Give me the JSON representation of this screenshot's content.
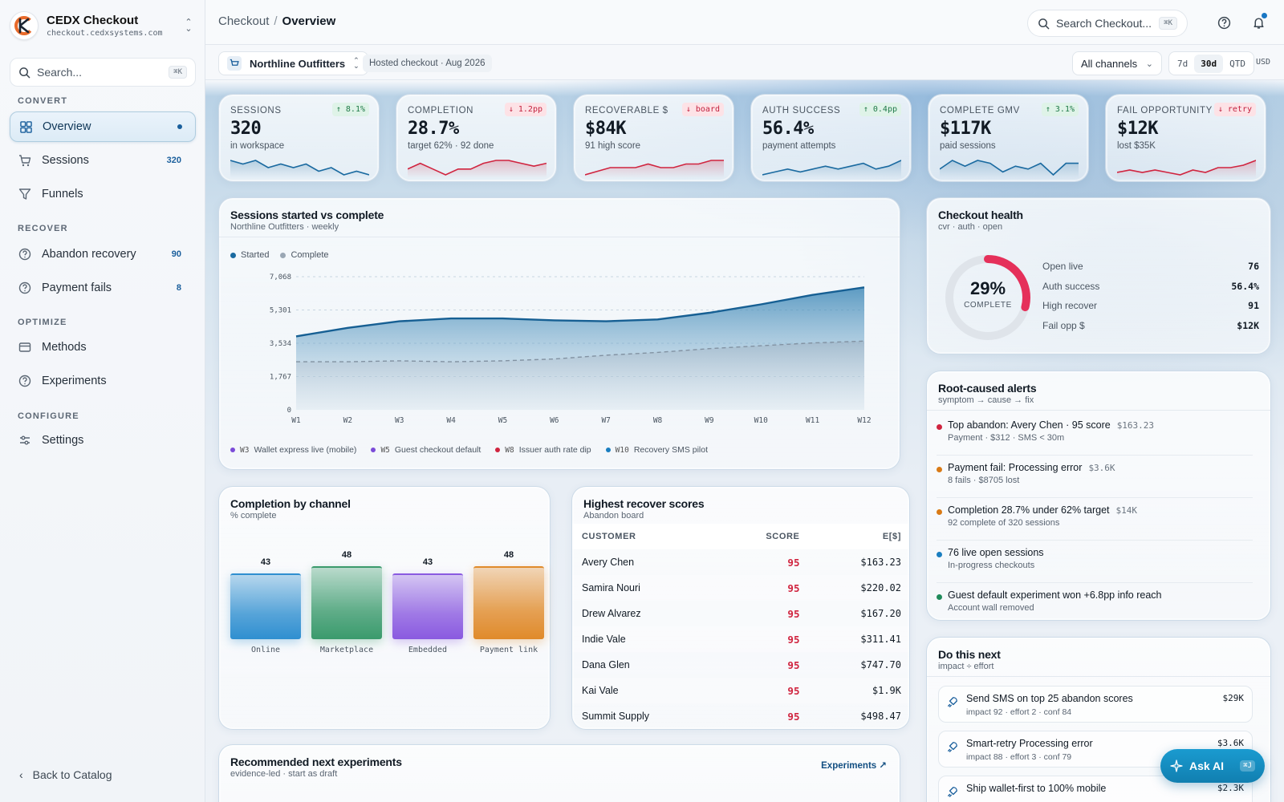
{
  "brand": {
    "name": "CEDX Checkout",
    "domain": "checkout.cedxsystems.com"
  },
  "sidebar": {
    "search_placeholder": "Search...",
    "search_kbd": "⌘K",
    "sections": [
      "CONVERT",
      "RECOVER",
      "OPTIMIZE",
      "CONFIGURE"
    ],
    "items": [
      {
        "label": "Overview",
        "count": ""
      },
      {
        "label": "Sessions",
        "count": "320"
      },
      {
        "label": "Funnels",
        "count": ""
      },
      {
        "label": "Abandon recovery",
        "count": "90"
      },
      {
        "label": "Payment fails",
        "count": "8"
      },
      {
        "label": "Methods",
        "count": ""
      },
      {
        "label": "Experiments",
        "count": ""
      },
      {
        "label": "Settings",
        "count": ""
      }
    ],
    "back": "Back to Catalog"
  },
  "header": {
    "crumb_root": "Checkout",
    "crumb_sep": "/",
    "crumb_current": "Overview",
    "search_placeholder": "Search Checkout...",
    "search_kbd": "⌘K"
  },
  "subbar": {
    "store": "Northline Outfitters",
    "hosted": "Hosted checkout · Aug 2026",
    "channel": "All channels",
    "ranges": [
      "7d",
      "30d",
      "QTD"
    ],
    "selected_range": "30d",
    "currency": "USD"
  },
  "kpis": [
    {
      "label": "SESSIONS",
      "badge": "↑ 8.1%",
      "trend": "up",
      "value": "320",
      "sub": "in workspace",
      "color": "#1a6aa0",
      "spark": [
        6,
        5,
        6,
        4,
        5,
        4,
        5,
        3,
        4,
        2,
        3,
        2
      ]
    },
    {
      "label": "COMPLETION",
      "badge": "↓ 1.2pp",
      "trend": "down",
      "value": "28.7%",
      "sub": "target 62% · 92 done",
      "color": "#d0243f",
      "spark": [
        3,
        5,
        3,
        1,
        3,
        3,
        5,
        6,
        6,
        5,
        4,
        5
      ]
    },
    {
      "label": "RECOVERABLE $",
      "badge": "↓ board",
      "trend": "down",
      "value": "$84K",
      "sub": "91 high score",
      "color": "#d0243f",
      "spark": [
        2,
        3,
        4,
        4,
        4,
        5,
        4,
        4,
        5,
        5,
        6,
        6
      ]
    },
    {
      "label": "AUTH SUCCESS",
      "badge": "↑ 0.4pp",
      "trend": "up",
      "value": "56.4%",
      "sub": "payment attempts",
      "color": "#1a6aa0",
      "spark": [
        2,
        3,
        4,
        3,
        4,
        5,
        4,
        5,
        6,
        4,
        5,
        7
      ]
    },
    {
      "label": "COMPLETE GMV",
      "badge": "↑ 3.1%",
      "trend": "up",
      "value": "$117K",
      "sub": "paid sessions",
      "color": "#1a6aa0",
      "spark": [
        4,
        7,
        5,
        7,
        6,
        3,
        5,
        4,
        6,
        2,
        6,
        6
      ]
    },
    {
      "label": "FAIL OPPORTUNITY",
      "badge": "↓ retry",
      "trend": "down",
      "value": "$12K",
      "sub": "lost $35K",
      "color": "#d0243f",
      "spark": [
        3,
        4,
        3,
        4,
        3,
        2,
        4,
        3,
        5,
        5,
        6,
        8
      ]
    }
  ],
  "sessions_chart": {
    "title": "Sessions started vs complete",
    "subtitle": "Northline Outfitters · weekly",
    "chart_data": {
      "type": "area",
      "x": [
        "W1",
        "W2",
        "W3",
        "W4",
        "W5",
        "W6",
        "W7",
        "W8",
        "W9",
        "W10",
        "W11",
        "W12"
      ],
      "series": [
        {
          "name": "Started",
          "color": "#1a6aa0",
          "values": [
            3900,
            4350,
            4700,
            4850,
            4850,
            4750,
            4700,
            4800,
            5150,
            5600,
            6100,
            6500
          ]
        },
        {
          "name": "Complete",
          "color": "#9aa7b4",
          "values": [
            2550,
            2550,
            2600,
            2550,
            2600,
            2700,
            2900,
            3050,
            3250,
            3400,
            3550,
            3650
          ]
        }
      ],
      "yticks": [
        "0",
        "1,767",
        "3,534",
        "5,301",
        "7,068"
      ],
      "ylim": [
        0,
        7068
      ],
      "grid": true,
      "legend": "top-left"
    },
    "events": [
      {
        "week": "W3",
        "label": "Wallet express live (mobile)",
        "color": "#7b4bd8"
      },
      {
        "week": "W5",
        "label": "Guest checkout default",
        "color": "#7b4bd8"
      },
      {
        "week": "W8",
        "label": "Issuer auth rate dip",
        "color": "#d0243f"
      },
      {
        "week": "W10",
        "label": "Recovery SMS pilot",
        "color": "#1a7ec0"
      }
    ]
  },
  "health": {
    "title": "Checkout health",
    "subtitle": "cvr · auth · open",
    "pct": "29%",
    "pct_label": "COMPLETE",
    "fraction": 0.29,
    "stats": [
      {
        "label": "Open live",
        "value": "76"
      },
      {
        "label": "Auth success",
        "value": "56.4%"
      },
      {
        "label": "High recover",
        "value": "91"
      },
      {
        "label": "Fail opp $",
        "value": "$12K"
      }
    ]
  },
  "alerts": {
    "title": "Root-caused alerts",
    "subtitle": "symptom → cause → fix",
    "items": [
      {
        "title": "Top abandon: Avery Chen · 95 score",
        "meta": "$163.23",
        "sub": "Payment · $312 · SMS < 30m",
        "color": "#d0243f"
      },
      {
        "title": "Payment fail: Processing error",
        "meta": "$3.6K",
        "sub": "8 fails · $8705 lost",
        "color": "#d97a16"
      },
      {
        "title": "Completion 28.7% under 62% target",
        "meta": "$14K",
        "sub": "92 complete of 320 sessions",
        "color": "#d97a16"
      },
      {
        "title": "76 live open sessions",
        "meta": "",
        "sub": "In-progress checkouts",
        "color": "#1a7ec0"
      },
      {
        "title": "Guest default experiment won +6.8pp info reach",
        "meta": "",
        "sub": "Account wall removed",
        "color": "#1f8a5a"
      }
    ]
  },
  "channel_chart": {
    "title": "Completion by channel",
    "subtitle": "% complete",
    "chart_data": {
      "type": "bar",
      "categories": [
        "Online",
        "Marketplace",
        "Embedded",
        "Payment link"
      ],
      "values": [
        43,
        48,
        43,
        48
      ],
      "colors": [
        "#2f8fd0",
        "#3a9a6c",
        "#8a5ae0",
        "#e08a2a"
      ],
      "ylim": [
        0,
        100
      ]
    }
  },
  "scores": {
    "title": "Highest recover scores",
    "subtitle": "Abandon board",
    "columns": [
      "CUSTOMER",
      "SCORE",
      "E[$]"
    ],
    "rows": [
      {
        "name": "Avery Chen",
        "score": "95",
        "value": "$163.23"
      },
      {
        "name": "Samira Nouri",
        "score": "95",
        "value": "$220.02"
      },
      {
        "name": "Drew Alvarez",
        "score": "95",
        "value": "$167.20"
      },
      {
        "name": "Indie Vale",
        "score": "95",
        "value": "$311.41"
      },
      {
        "name": "Dana Glen",
        "score": "95",
        "value": "$747.70"
      },
      {
        "name": "Kai Vale",
        "score": "95",
        "value": "$1.9K"
      },
      {
        "name": "Summit Supply",
        "score": "95",
        "value": "$498.47"
      }
    ]
  },
  "next": {
    "title": "Do this next",
    "subtitle": "impact ÷ effort",
    "items": [
      {
        "title": "Send SMS on top 25 abandon scores",
        "sub": "impact 92 · effort 2 · conf 84",
        "value": "$29K"
      },
      {
        "title": "Smart-retry Processing error",
        "sub": "impact 88 · effort 3 · conf 79",
        "value": "$3.6K"
      },
      {
        "title": "Ship wallet-first to 100% mobile",
        "sub": "",
        "value": "$2.3K"
      }
    ]
  },
  "experiments": {
    "title": "Recommended next experiments",
    "subtitle": "evidence-led · start as draft",
    "link": "Experiments ↗"
  },
  "askai": {
    "label": "Ask AI",
    "kbd": "⌘J"
  }
}
